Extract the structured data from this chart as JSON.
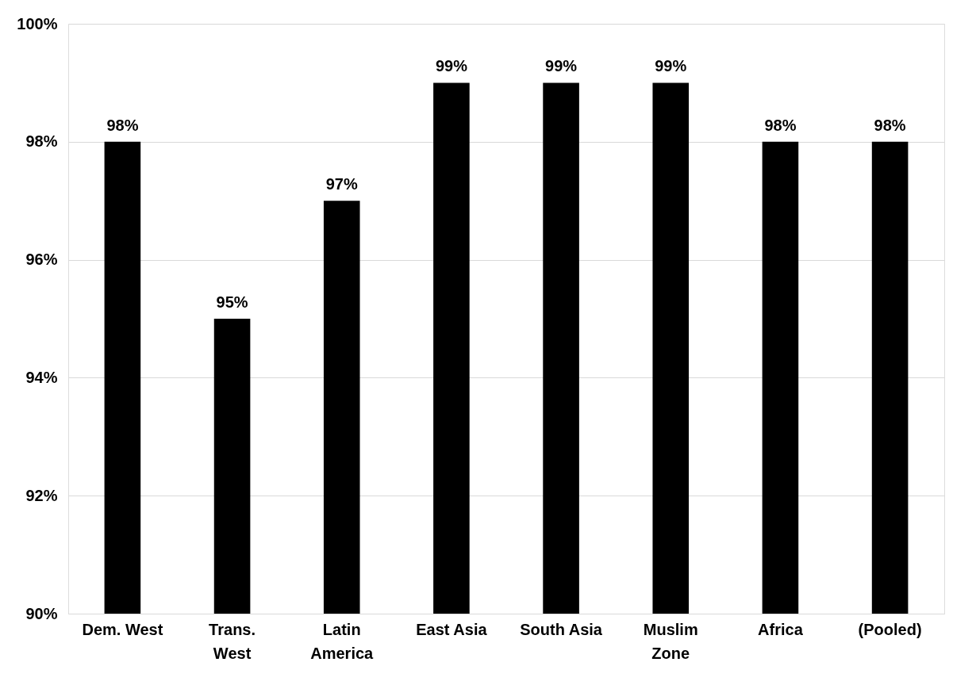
{
  "chart_data": {
    "type": "bar",
    "categories": [
      "Dem. West",
      "Trans.\nWest",
      "Latin\nAmerica",
      "East Asia",
      "South Asia",
      "Muslim\nZone",
      "Africa",
      "(Pooled)"
    ],
    "values": [
      98,
      95,
      97,
      99,
      99,
      99,
      98,
      98
    ],
    "value_labels": [
      "98%",
      "95%",
      "97%",
      "99%",
      "99%",
      "99%",
      "98%",
      "98%"
    ],
    "color": "#000000",
    "ylim": [
      90,
      100
    ],
    "yticks": [
      {
        "value": 90,
        "label": "90%"
      },
      {
        "value": 92,
        "label": "92%"
      },
      {
        "value": 94,
        "label": "94%"
      },
      {
        "value": 96,
        "label": "96%"
      },
      {
        "value": 98,
        "label": "98%"
      },
      {
        "value": 100,
        "label": "100%"
      }
    ],
    "grid": "y"
  }
}
